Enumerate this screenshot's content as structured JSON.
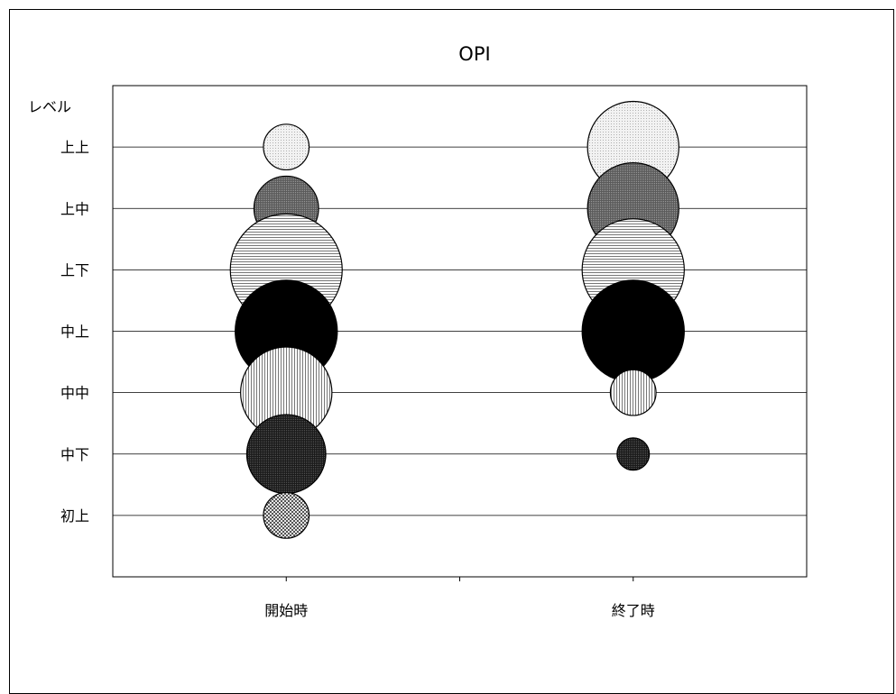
{
  "top_clip_label": "",
  "chart_data": {
    "type": "bubble",
    "title": "OPI",
    "ylabel": "レベル",
    "categories": [
      "開始時",
      "終了時"
    ],
    "levels": [
      "初上",
      "中下",
      "中中",
      "中上",
      "上下",
      "上中",
      "上上"
    ],
    "ylim": [
      0,
      8
    ],
    "grid": true,
    "series": [
      {
        "level": "上上",
        "pattern": "light-dots",
        "values": [
          1,
          4
        ]
      },
      {
        "level": "上中",
        "pattern": "dark-dots",
        "values": [
          2,
          4
        ]
      },
      {
        "level": "上下",
        "pattern": "horizontal-lines",
        "values": [
          6,
          5
        ]
      },
      {
        "level": "中上",
        "pattern": "solid-black",
        "values": [
          5,
          5
        ]
      },
      {
        "level": "中中",
        "pattern": "vertical-lines",
        "values": [
          4,
          1
        ]
      },
      {
        "level": "中下",
        "pattern": "very-dark-dots",
        "values": [
          3,
          0.5
        ]
      },
      {
        "level": "初上",
        "pattern": "checker",
        "values": [
          1,
          0
        ]
      }
    ]
  }
}
